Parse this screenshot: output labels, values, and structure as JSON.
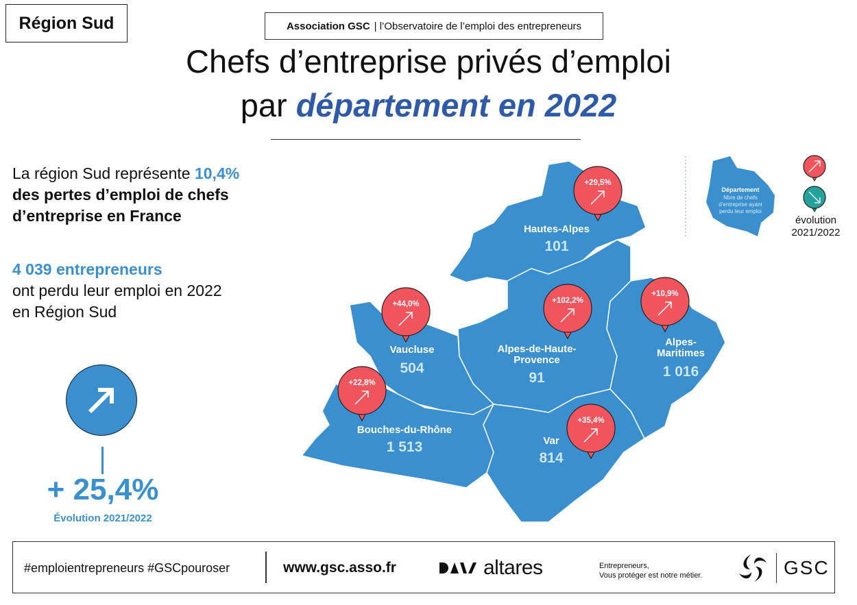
{
  "region_label": "Région Sud",
  "header": {
    "org": "Association GSC",
    "subtitle": "| l’Observatoire de l’emploi des entrepreneurs"
  },
  "title": {
    "line1": "Chefs d’entreprise privés d’emploi",
    "line2_prefix": "par ",
    "line2_emphasis": "département en 2022"
  },
  "intro": {
    "part1": "La région Sud représente ",
    "highlight": "10,4%",
    "part2": "des pertes d’emploi de chefs d’entreprise en France"
  },
  "total": {
    "highlight": "4 039 entrepreneurs",
    "line2": "ont perdu leur emploi en 2022",
    "line3": "en Région Sud"
  },
  "evolution": {
    "value": "+ 25,4%",
    "label": "Évolution 2021/2022",
    "direction": "up"
  },
  "departments": [
    {
      "name": "Hautes-Alpes",
      "count": "101",
      "evolution": "+29,5%"
    },
    {
      "name": "Vaucluse",
      "count": "504",
      "evolution": "+44,0%"
    },
    {
      "name": "Alpes-de-Haute-Provence",
      "count": "91",
      "evolution": "+102,2%"
    },
    {
      "name": "Alpes-Maritimes",
      "count": "1 016",
      "evolution": "+10,9%"
    },
    {
      "name": "Bouches-du-Rhône",
      "count": "1 513",
      "evolution": "+22,8%"
    },
    {
      "name": "Var",
      "count": "814",
      "evolution": "+35,4%"
    }
  ],
  "legend": {
    "dept": "Département",
    "desc": "Nbre de chefs d’entreprise ayant perdu leur emploi",
    "evolution": "évolution 2021/2022"
  },
  "footer": {
    "hashtags": "#emploientrepreneurs #GSCpouroser",
    "website": "www.gsc.asso.fr",
    "altares": "altares",
    "tagline1": "Entrepreneurs,",
    "tagline2": "Vous protéger est notre métier.",
    "gsc": "GSC"
  },
  "colors": {
    "map": "#3a8fce",
    "up": "#f0555e",
    "down": "#24a19a",
    "title_accent": "#2e5aa8"
  }
}
